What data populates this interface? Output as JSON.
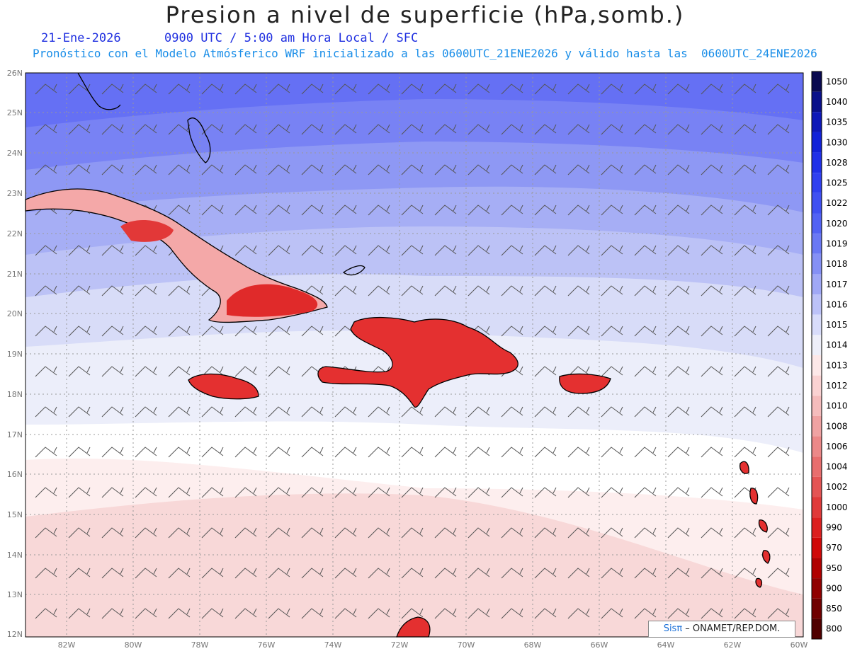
{
  "header": {
    "title": "Presion a nivel de superficie (hPa,somb.)",
    "date": "21-Ene-2026",
    "valid": "0900 UTC / 5:00 am Hora Local / SFC",
    "model_line": "Pronóstico con el Modelo Atmósferico WRF inicializado a las 0600UTC_21ENE2026 y válido hasta las  0600UTC_24ENE2026"
  },
  "axes": {
    "lat_labels": [
      "26N",
      "25N",
      "24N",
      "23N",
      "22N",
      "21N",
      "20N",
      "19N",
      "18N",
      "17N",
      "16N",
      "15N",
      "14N",
      "13N",
      "12N"
    ],
    "lon_labels": [
      "82W",
      "80W",
      "78W",
      "76W",
      "74W",
      "72W",
      "70W",
      "68W",
      "66W",
      "64W",
      "62W",
      "60W"
    ]
  },
  "colorbar": {
    "labels": [
      "1050",
      "1040",
      "1035",
      "1030",
      "1028",
      "1025",
      "1022",
      "1020",
      "1019",
      "1018",
      "1017",
      "1016",
      "1015",
      "1014",
      "1013",
      "1012",
      "1010",
      "1008",
      "1006",
      "1004",
      "1002",
      "1000",
      "990",
      "970",
      "950",
      "900",
      "850",
      "800"
    ],
    "colors": [
      "#0a0a50",
      "#0a108a",
      "#0e18b8",
      "#1222d8",
      "#2030e8",
      "#3040f0",
      "#4050f2",
      "#5262f4",
      "#6a78f4",
      "#8590f5",
      "#a0a8f6",
      "#bcc2f8",
      "#d8dcfa",
      "#eeeff9",
      "#fde8e8",
      "#fad2d2",
      "#f5bcbc",
      "#f0a2a2",
      "#ec8888",
      "#e86e6e",
      "#e45454",
      "#e03a3a",
      "#dc2020",
      "#d00808",
      "#b00000",
      "#900000",
      "#700000",
      "#500000"
    ]
  },
  "credit": {
    "sis": "Sisπ",
    "text": " – ONAMET/REP.DOM."
  }
}
